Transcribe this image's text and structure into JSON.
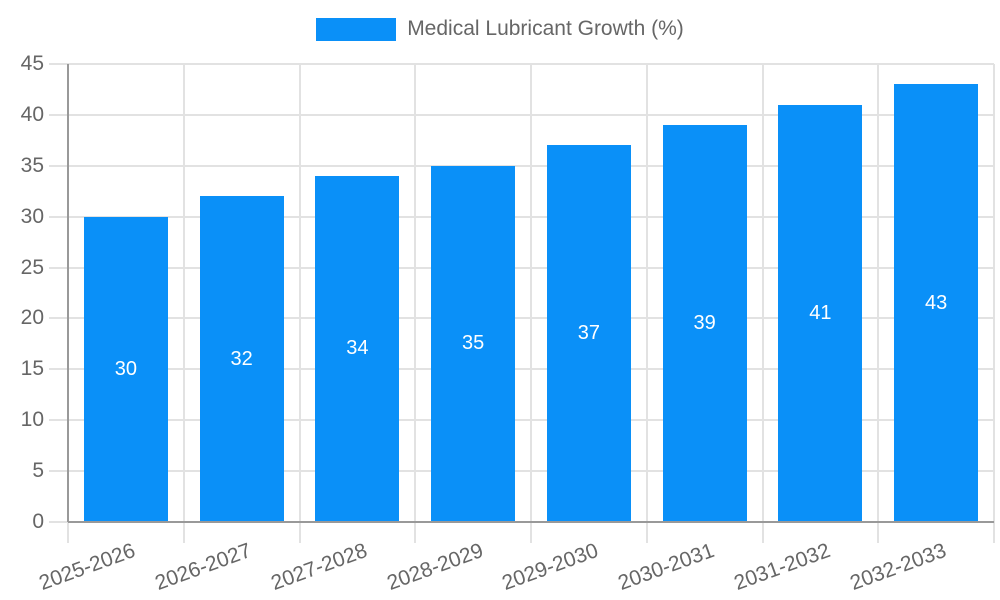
{
  "legend": {
    "label": "Medical Lubricant Growth (%)"
  },
  "chart_data": {
    "type": "bar",
    "title": "Medical Lubricant Growth (%)",
    "categories": [
      "2025-2026",
      "2026-2027",
      "2027-2028",
      "2028-2029",
      "2029-2030",
      "2030-2031",
      "2031-2032",
      "2032-2033"
    ],
    "series": [
      {
        "name": "Medical Lubricant Growth (%)",
        "values": [
          30,
          32,
          34,
          35,
          37,
          39,
          41,
          43
        ]
      }
    ],
    "values": [
      30,
      32,
      34,
      35,
      37,
      39,
      41,
      43
    ],
    "bar_labels": [
      "30",
      "32",
      "34",
      "35",
      "37",
      "39",
      "41",
      "43"
    ],
    "xlabel": "",
    "ylabel": "",
    "ylim": [
      0,
      45
    ],
    "ytick_step": 5,
    "ytick_labels": [
      "0",
      "5",
      "10",
      "15",
      "20",
      "25",
      "30",
      "35",
      "40",
      "45"
    ],
    "grid": true,
    "legend_position": "top",
    "colors": {
      "bar": "#0a90f8",
      "grid": "#e2e2e2",
      "axis": "#999999",
      "text": "#666666",
      "bar_label": "#ffffff",
      "background": "#ffffff"
    }
  }
}
